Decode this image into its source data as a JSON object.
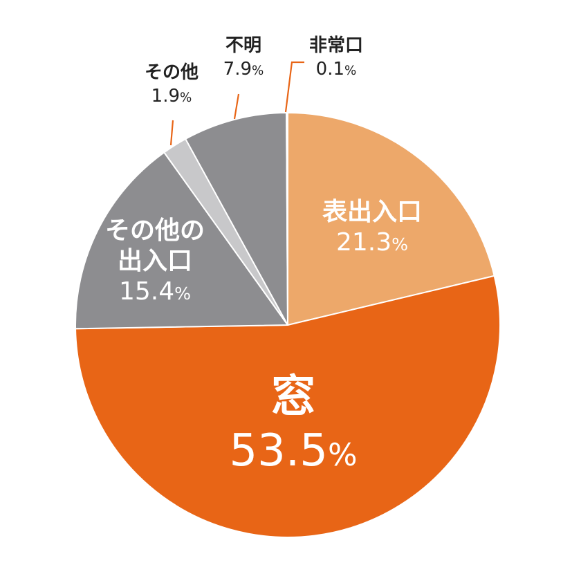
{
  "chart_data": {
    "type": "pie",
    "slices": [
      {
        "label": "表出入口",
        "value": 21.3,
        "value_text": "21.3",
        "unit": "%",
        "color": "#eda86a",
        "label_position": "inside"
      },
      {
        "label": "窓",
        "value": 53.5,
        "value_text": "53.5",
        "unit": "%",
        "color": "#e86516",
        "label_position": "inside"
      },
      {
        "label": "その他の出入口",
        "label_lines": [
          "その他の",
          "出入口"
        ],
        "value": 15.4,
        "value_text": "15.4",
        "unit": "%",
        "color": "#8d8d90",
        "label_position": "inside"
      },
      {
        "label": "その他",
        "value": 1.9,
        "value_text": "1.9",
        "unit": "%",
        "color": "#c8c8ca",
        "label_position": "outside"
      },
      {
        "label": "不明",
        "value": 7.9,
        "value_text": "7.9",
        "unit": "%",
        "color": "#8d8d90",
        "label_position": "outside"
      },
      {
        "label": "非常口",
        "value": 0.1,
        "value_text": "0.1",
        "unit": "%",
        "color": "#e86516",
        "label_position": "outside"
      }
    ],
    "start": "12 o'clock",
    "direction": "clockwise",
    "leader_line_color": "#e86516"
  }
}
